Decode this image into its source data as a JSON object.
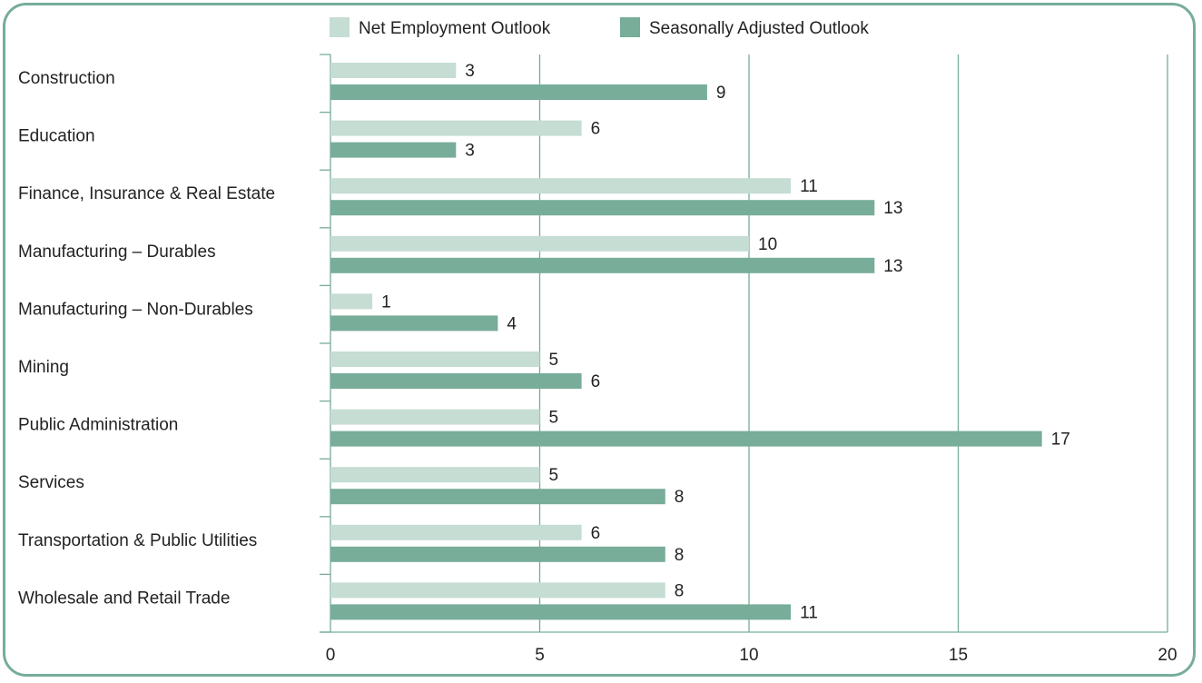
{
  "chart_data": {
    "type": "bar",
    "orientation": "horizontal",
    "categories": [
      "Construction",
      "Education",
      "Finance, Insurance & Real Estate",
      "Manufacturing – Durables",
      "Manufacturing – Non-Durables",
      "Mining",
      "Public Administration",
      "Services",
      "Transportation & Public Utilities",
      "Wholesale and Retail Trade"
    ],
    "series": [
      {
        "name": "Net Employment Outlook",
        "color": "#c5ddd3",
        "values": [
          3,
          6,
          11,
          10,
          1,
          5,
          5,
          5,
          6,
          8
        ]
      },
      {
        "name": "Seasonally Adjusted Outlook",
        "color": "#77ad99",
        "values": [
          9,
          3,
          13,
          13,
          4,
          6,
          17,
          8,
          8,
          11
        ]
      }
    ],
    "xlim": [
      0,
      20
    ],
    "xticks": [
      "0",
      "5",
      "10",
      "15",
      "20"
    ],
    "grid": true,
    "legend_position": "top",
    "accent_color": "#77ad99"
  }
}
